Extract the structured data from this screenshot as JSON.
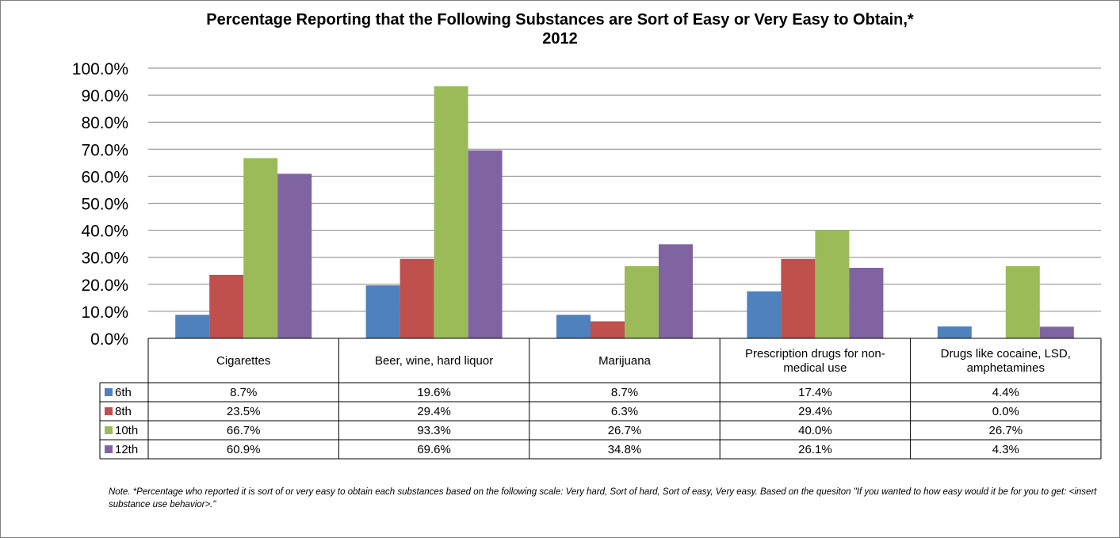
{
  "chart_data": {
    "type": "bar",
    "title": "Percentage Reporting that the Following Substances are Sort of Easy or Very Easy to Obtain,*",
    "subtitle": "2012",
    "categories": [
      [
        "Cigarettes"
      ],
      [
        "Beer, wine, hard liquor"
      ],
      [
        "Marijuana"
      ],
      [
        "Prescription drugs for non-",
        "medical use"
      ],
      [
        "Drugs like cocaine, LSD,",
        "amphetamines"
      ]
    ],
    "series": [
      {
        "name": "6th",
        "color": "#4f81bd",
        "values": [
          8.7,
          19.6,
          8.7,
          17.4,
          4.4
        ],
        "labels": [
          "8.7%",
          "19.6%",
          "8.7%",
          "17.4%",
          "4.4%"
        ]
      },
      {
        "name": "8th",
        "color": "#c0504d",
        "values": [
          23.5,
          29.4,
          6.3,
          29.4,
          0.0
        ],
        "labels": [
          "23.5%",
          "29.4%",
          "6.3%",
          "29.4%",
          "0.0%"
        ]
      },
      {
        "name": "10th",
        "color": "#9bbb59",
        "values": [
          66.7,
          93.3,
          26.7,
          40.0,
          26.7
        ],
        "labels": [
          "66.7%",
          "93.3%",
          "26.7%",
          "40.0%",
          "26.7%"
        ]
      },
      {
        "name": "12th",
        "color": "#8064a2",
        "values": [
          60.9,
          69.6,
          34.8,
          26.1,
          4.3
        ],
        "labels": [
          "60.9%",
          "69.6%",
          "34.8%",
          "26.1%",
          "4.3%"
        ]
      }
    ],
    "ylim": [
      0,
      100
    ],
    "yticks": [
      "0.0%",
      "10.0%",
      "20.0%",
      "30.0%",
      "40.0%",
      "50.0%",
      "60.0%",
      "70.0%",
      "80.0%",
      "90.0%",
      "100.0%"
    ],
    "grid": true,
    "legend": "data-table"
  },
  "note": "Note. *Percentage  who reported it is sort of or very easy to obtain  each substances  based on the following scale:  Very hard, Sort of hard, Sort of easy, Very easy.  Based on the quesiton \"If you wanted to how easy would it be for you to get: <insert substance  use behavior>.\""
}
